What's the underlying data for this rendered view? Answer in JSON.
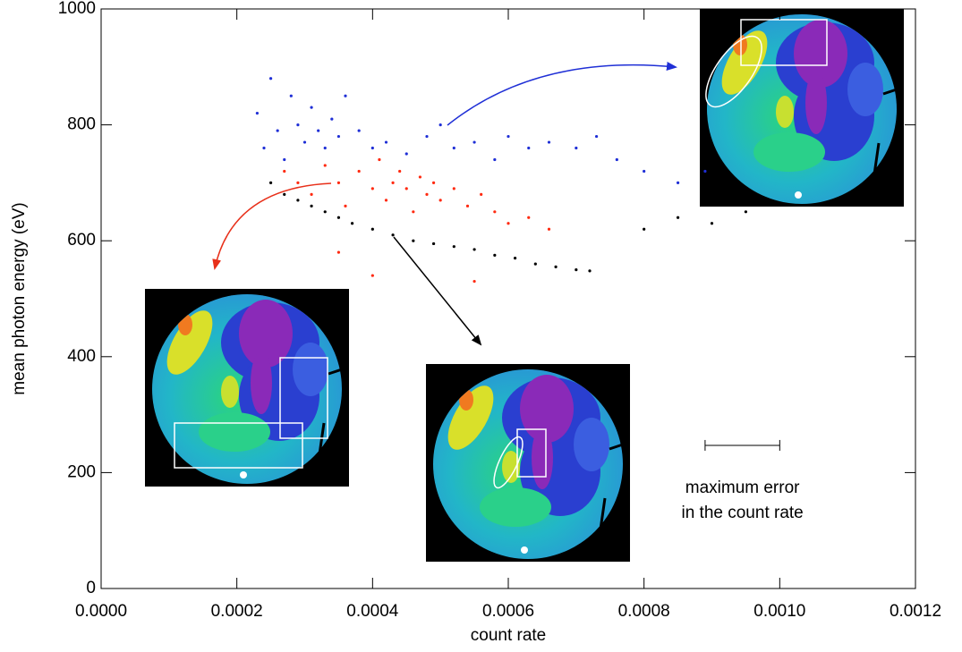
{
  "chart_data": {
    "type": "scatter",
    "xlabel": "count rate",
    "ylabel": "mean photon energy (eV)",
    "xlim": [
      0,
      0.0012
    ],
    "ylim": [
      0,
      1000
    ],
    "xticks": [
      {
        "value": 0,
        "label": "0.0000"
      },
      {
        "value": 0.0002,
        "label": "0.0002"
      },
      {
        "value": 0.0004,
        "label": "0.0004"
      },
      {
        "value": 0.0006,
        "label": "0.0006"
      },
      {
        "value": 0.0008,
        "label": "0.0008"
      },
      {
        "value": 0.001,
        "label": "0.0010"
      },
      {
        "value": 0.0012,
        "label": "0.0012"
      }
    ],
    "yticks": [
      0,
      200,
      400,
      600,
      800,
      1000
    ],
    "grid": false,
    "series": [
      {
        "color": "#1f2fd6",
        "x": [
          0.00023,
          0.00024,
          0.00025,
          0.00026,
          0.00027,
          0.00028,
          0.00029,
          0.0003,
          0.00031,
          0.00032,
          0.00033,
          0.00034,
          0.00035,
          0.00036,
          0.00038,
          0.0004,
          0.00042,
          0.00045,
          0.00048,
          0.0005,
          0.00052,
          0.00055,
          0.00058,
          0.0006,
          0.00063,
          0.00066,
          0.0007,
          0.00073,
          0.00076,
          0.0008,
          0.00085,
          0.00089
        ],
        "values": [
          820,
          760,
          880,
          790,
          740,
          850,
          800,
          770,
          830,
          790,
          760,
          810,
          780,
          850,
          790,
          760,
          770,
          750,
          780,
          800,
          760,
          770,
          740,
          780,
          760,
          770,
          760,
          780,
          740,
          720,
          700,
          720
        ]
      },
      {
        "color": "#ff2a10",
        "x": [
          0.00027,
          0.00029,
          0.00031,
          0.00033,
          0.00035,
          0.00036,
          0.00038,
          0.0004,
          0.00041,
          0.00042,
          0.00043,
          0.00044,
          0.00045,
          0.00046,
          0.00047,
          0.00048,
          0.00049,
          0.0005,
          0.00052,
          0.00054,
          0.00056,
          0.00058,
          0.0006,
          0.00063,
          0.00066,
          0.00035,
          0.0004,
          0.00055
        ],
        "values": [
          720,
          700,
          680,
          730,
          700,
          660,
          720,
          690,
          740,
          670,
          700,
          720,
          690,
          650,
          710,
          680,
          700,
          670,
          690,
          660,
          680,
          650,
          630,
          640,
          620,
          580,
          540,
          530
        ]
      },
      {
        "color": "#000000",
        "x": [
          0.00025,
          0.00027,
          0.00029,
          0.00031,
          0.00033,
          0.00035,
          0.00037,
          0.0004,
          0.00043,
          0.00046,
          0.00049,
          0.00052,
          0.00055,
          0.00058,
          0.00061,
          0.00064,
          0.00067,
          0.0007,
          0.00072,
          0.0008,
          0.00085,
          0.0009,
          0.00095
        ],
        "values": [
          700,
          680,
          670,
          660,
          650,
          640,
          630,
          620,
          610,
          600,
          595,
          590,
          585,
          575,
          570,
          560,
          555,
          550,
          548,
          620,
          640,
          630,
          650
        ]
      }
    ],
    "annotation": {
      "lines": [
        "maximum error",
        "in the count rate"
      ],
      "x": [
        0.00089,
        0.001
      ],
      "y": 247
    }
  }
}
